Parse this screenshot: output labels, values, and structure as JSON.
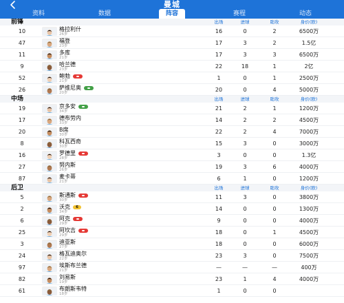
{
  "header": {
    "title": "曼城",
    "tabs": [
      "资料",
      "数据",
      "阵容",
      "赛程",
      "动态"
    ],
    "active_tab": 2
  },
  "columns": [
    "出场",
    "进球",
    "助攻",
    "身价(欧)"
  ],
  "sections": [
    {
      "name": "前锋",
      "players": [
        {
          "number": "10",
          "name": "格拉利什",
          "age": "26岁",
          "apps": "16",
          "goals": "0",
          "assists": "2",
          "value": "6500万",
          "badge": null
        },
        {
          "number": "47",
          "name": "福登",
          "age": "23岁",
          "apps": "17",
          "goals": "3",
          "assists": "2",
          "value": "1.5亿",
          "badge": null
        },
        {
          "number": "11",
          "name": "多库",
          "age": "21岁",
          "apps": "17",
          "goals": "3",
          "assists": "3",
          "value": "6500万",
          "badge": null
        },
        {
          "number": "9",
          "name": "哈兰德",
          "age": "23岁",
          "apps": "22",
          "goals": "18",
          "assists": "1",
          "value": "2亿",
          "badge": null
        },
        {
          "number": "52",
          "name": "鲍勃",
          "age": "21岁",
          "apps": "1",
          "goals": "0",
          "assists": "1",
          "value": "2500万",
          "badge": "red"
        },
        {
          "number": "26",
          "name": "萨维尼奥",
          "age": "20岁",
          "apps": "20",
          "goals": "0",
          "assists": "4",
          "value": "5000万",
          "badge": "green"
        }
      ]
    },
    {
      "name": "中场",
      "players": [
        {
          "number": "19",
          "name": "京多安",
          "age": "34岁",
          "apps": "21",
          "goals": "2",
          "assists": "1",
          "value": "1200万",
          "badge": "green"
        },
        {
          "number": "17",
          "name": "德布劳内",
          "age": "33岁",
          "apps": "14",
          "goals": "2",
          "assists": "2",
          "value": "4500万",
          "badge": null
        },
        {
          "number": "20",
          "name": "B席",
          "age": "30岁",
          "apps": "22",
          "goals": "2",
          "assists": "4",
          "value": "7000万",
          "badge": null
        },
        {
          "number": "8",
          "name": "科瓦西奇",
          "age": "30岁",
          "apps": "15",
          "goals": "3",
          "assists": "0",
          "value": "3000万",
          "badge": null
        },
        {
          "number": "16",
          "name": "罗德里",
          "age": "28岁",
          "apps": "3",
          "goals": "0",
          "assists": "0",
          "value": "1.3亿",
          "badge": "red"
        },
        {
          "number": "27",
          "name": "努内斯",
          "age": "26岁",
          "apps": "19",
          "goals": "3",
          "assists": "6",
          "value": "4000万",
          "badge": null
        },
        {
          "number": "87",
          "name": "麦卡蒂",
          "age": "21岁",
          "apps": "6",
          "goals": "1",
          "assists": "0",
          "value": "1200万",
          "badge": null
        }
      ]
    },
    {
      "name": "后卫",
      "players": [
        {
          "number": "5",
          "name": "斯通斯",
          "age": "30岁",
          "apps": "11",
          "goals": "3",
          "assists": "0",
          "value": "3800万",
          "badge": "red"
        },
        {
          "number": "2",
          "name": "沃克",
          "age": "34岁",
          "apps": "14",
          "goals": "0",
          "assists": "0",
          "value": "1300万",
          "badge": "yellow",
          "badge_text": "6"
        },
        {
          "number": "6",
          "name": "阿克",
          "age": "29岁",
          "apps": "9",
          "goals": "0",
          "assists": "0",
          "value": "4000万",
          "badge": "red"
        },
        {
          "number": "25",
          "name": "阿坎吉",
          "age": "29岁",
          "apps": "18",
          "goals": "0",
          "assists": "1",
          "value": "4500万",
          "badge": "red"
        },
        {
          "number": "3",
          "name": "迪亚斯",
          "age": "27岁",
          "apps": "18",
          "goals": "0",
          "assists": "0",
          "value": "6000万",
          "badge": null
        },
        {
          "number": "24",
          "name": "格瓦迪奥尔",
          "age": "22岁",
          "apps": "23",
          "goals": "3",
          "assists": "0",
          "value": "7500万",
          "badge": null
        },
        {
          "number": "97",
          "name": "埃斯布兰德",
          "age": "21岁",
          "apps": "—",
          "goals": "—",
          "assists": "—",
          "value": "400万",
          "badge": null
        },
        {
          "number": "82",
          "name": "刘易斯",
          "age": "19岁",
          "apps": "23",
          "goals": "1",
          "assists": "4",
          "value": "4000万",
          "badge": null
        },
        {
          "number": "61",
          "name": "布朗斯韦特",
          "age": "18岁",
          "apps": "1",
          "goals": "0",
          "assists": "0",
          "value": "",
          "badge": null
        }
      ]
    }
  ],
  "colors": {
    "primary": "#1E73D8",
    "badge_red": "#e53935",
    "badge_green": "#43a047",
    "badge_yellow": "#f2c230"
  },
  "icons": {
    "back": "chevron-left-icon"
  }
}
